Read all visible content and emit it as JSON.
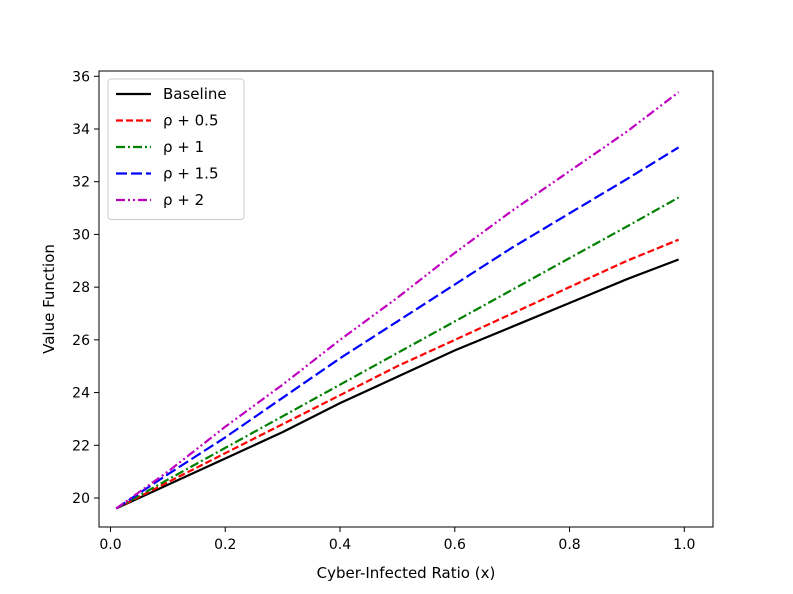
{
  "chart_data": {
    "type": "line",
    "title": "",
    "xlabel": "Cyber-Infected Ratio (x)",
    "ylabel": "Value Function",
    "xlim": [
      -0.02,
      1.05
    ],
    "ylim": [
      18.9,
      36.2
    ],
    "grid": false,
    "legend_position": "upper-left",
    "x_ticks": [
      0.0,
      0.2,
      0.4,
      0.6,
      0.8,
      1.0
    ],
    "x_tick_labels": [
      "0.0",
      "0.2",
      "0.4",
      "0.6",
      "0.8",
      "1.0"
    ],
    "y_ticks": [
      20,
      22,
      24,
      26,
      28,
      30,
      32,
      34,
      36
    ],
    "y_tick_labels": [
      "20",
      "22",
      "24",
      "26",
      "28",
      "30",
      "32",
      "34",
      "36"
    ],
    "x": [
      0.01,
      0.1,
      0.2,
      0.3,
      0.4,
      0.5,
      0.6,
      0.7,
      0.8,
      0.9,
      0.99
    ],
    "series": [
      {
        "name": "Baseline",
        "color": "#000000",
        "dash": "solid",
        "values": [
          19.6,
          20.5,
          21.5,
          22.5,
          23.6,
          24.6,
          25.6,
          26.5,
          27.4,
          28.3,
          29.05
        ]
      },
      {
        "name": "ρ + 0.5",
        "color": "#ff0000",
        "dash": "dashed",
        "values": [
          19.6,
          20.6,
          21.7,
          22.8,
          23.9,
          25.0,
          26.0,
          27.0,
          28.0,
          29.0,
          29.8
        ]
      },
      {
        "name": "ρ + 1",
        "color": "#008000",
        "dash": "dashdot",
        "values": [
          19.6,
          20.7,
          21.9,
          23.1,
          24.3,
          25.5,
          26.7,
          27.9,
          29.1,
          30.3,
          31.4
        ]
      },
      {
        "name": "ρ + 1.5",
        "color": "#0000ff",
        "dash": "longdash",
        "values": [
          19.6,
          20.9,
          22.3,
          23.8,
          25.3,
          26.7,
          28.1,
          29.5,
          30.8,
          32.1,
          33.3
        ]
      },
      {
        "name": "ρ + 2",
        "color": "#bf00bf",
        "dash": "dashdotdot",
        "values": [
          19.6,
          21.0,
          22.7,
          24.3,
          26.0,
          27.6,
          29.3,
          30.9,
          32.4,
          33.9,
          35.4
        ]
      }
    ]
  }
}
